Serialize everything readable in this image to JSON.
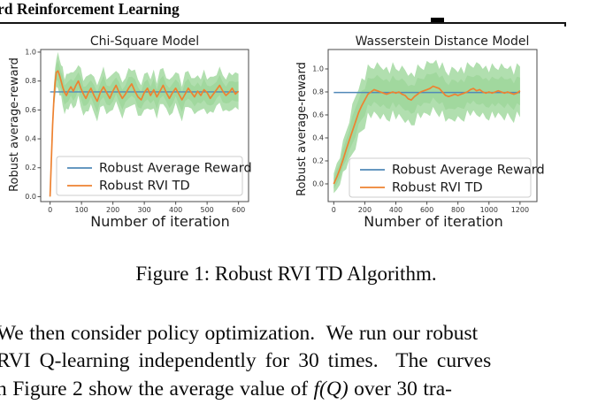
{
  "header": {
    "title": "rd Reinforcement Learning"
  },
  "figure": {
    "caption": "Figure 1: Robust RVI TD Algorithm."
  },
  "body": {
    "line1": "We then consider policy optimization.  We run our robust",
    "line2": "RVI Q-learning independently for 30 times.  The curves",
    "line3_pre": "n Figure 2 show the average value of ",
    "line3_math": "f(Q)",
    "line3_post": " over 30 tra-"
  },
  "chart_data": [
    {
      "type": "line",
      "title": "Chi-Square Model",
      "xlabel": "Number of iteration",
      "ylabel": "Robust average-reward",
      "xlim": [
        -30,
        632
      ],
      "ylim": [
        -0.034,
        1.018
      ],
      "xticks": [
        0,
        100,
        200,
        300,
        400,
        500,
        600
      ],
      "yticks": [
        0.0,
        0.2,
        0.4,
        0.6,
        0.8,
        1.0
      ],
      "grid": false,
      "legend": {
        "position": "lower center",
        "entries": [
          "Robust Average Reward",
          "Robust RVI TD"
        ]
      },
      "colors": {
        "baseline": "#5089b8",
        "curve": "#ee8230",
        "band": "#a9dba6",
        "band_inner": "#93d190"
      },
      "baseline": {
        "name": "Robust Average Reward",
        "value": 0.725,
        "x_range": [
          0,
          600
        ]
      },
      "curve": {
        "name": "Robust RVI TD",
        "x": [
          0,
          4,
          8,
          12,
          16,
          20,
          25,
          30,
          35,
          40,
          46,
          52,
          58,
          66,
          74,
          82,
          90,
          98,
          106,
          114,
          122,
          130,
          140,
          150,
          160,
          170,
          180,
          190,
          200,
          210,
          220,
          230,
          240,
          250,
          260,
          270,
          280,
          290,
          300,
          310,
          320,
          330,
          340,
          350,
          360,
          370,
          380,
          390,
          400,
          410,
          420,
          430,
          440,
          450,
          460,
          470,
          480,
          490,
          500,
          510,
          520,
          530,
          540,
          550,
          560,
          570,
          580,
          590,
          600
        ],
        "y": [
          0.0,
          0.26,
          0.5,
          0.67,
          0.79,
          0.86,
          0.87,
          0.84,
          0.8,
          0.76,
          0.72,
          0.7,
          0.73,
          0.76,
          0.73,
          0.77,
          0.8,
          0.75,
          0.71,
          0.68,
          0.72,
          0.75,
          0.7,
          0.66,
          0.72,
          0.76,
          0.72,
          0.68,
          0.73,
          0.77,
          0.72,
          0.68,
          0.71,
          0.75,
          0.78,
          0.73,
          0.69,
          0.67,
          0.72,
          0.75,
          0.7,
          0.74,
          0.69,
          0.73,
          0.77,
          0.72,
          0.68,
          0.72,
          0.75,
          0.71,
          0.67,
          0.71,
          0.75,
          0.72,
          0.69,
          0.73,
          0.7,
          0.74,
          0.72,
          0.68,
          0.71,
          0.74,
          0.77,
          0.73,
          0.7,
          0.72,
          0.75,
          0.71,
          0.73
        ]
      },
      "band": {
        "upper_offsets": [
          0.11,
          0.14,
          0.09,
          0.15,
          0.12,
          0.1,
          0.13,
          0.11
        ],
        "lower_offsets": [
          0.1,
          0.13,
          0.15,
          0.09,
          0.13,
          0.11,
          0.12,
          0.14
        ],
        "start_ramp": [
          0.2,
          0.35,
          0.5,
          0.65,
          0.8,
          0.9,
          1,
          1
        ]
      }
    },
    {
      "type": "line",
      "title": "Wasserstein Distance Model",
      "xlabel": "Number of iteration",
      "ylabel": "Robust average-reward",
      "xlim": [
        -36,
        1309
      ],
      "ylim": [
        -0.154,
        1.169
      ],
      "xticks": [
        0,
        200,
        400,
        600,
        800,
        1000,
        1200
      ],
      "yticks": [
        0.0,
        0.2,
        0.4,
        0.6,
        0.8,
        1.0
      ],
      "grid": false,
      "legend": {
        "position": "lower center",
        "entries": [
          "Robust Average Reward",
          "Robust RVI TD"
        ]
      },
      "colors": {
        "baseline": "#5089b8",
        "curve": "#ee8230",
        "band": "#a9dba6",
        "band_inner": "#93d190"
      },
      "baseline": {
        "name": "Robust Average Reward",
        "value": 0.795,
        "x_range": [
          0,
          1200
        ]
      },
      "curve": {
        "name": "Robust RVI TD",
        "x": [
          0,
          20,
          40,
          60,
          80,
          100,
          120,
          140,
          160,
          180,
          200,
          220,
          240,
          260,
          280,
          300,
          320,
          340,
          360,
          380,
          400,
          420,
          440,
          460,
          480,
          500,
          520,
          540,
          560,
          580,
          600,
          620,
          640,
          660,
          680,
          700,
          720,
          740,
          760,
          780,
          800,
          820,
          840,
          860,
          880,
          900,
          920,
          940,
          960,
          980,
          1000,
          1020,
          1040,
          1060,
          1080,
          1100,
          1120,
          1140,
          1160,
          1180,
          1200
        ],
        "y": [
          0.0,
          0.06,
          0.13,
          0.21,
          0.3,
          0.38,
          0.46,
          0.54,
          0.62,
          0.68,
          0.73,
          0.78,
          0.8,
          0.82,
          0.81,
          0.8,
          0.79,
          0.78,
          0.79,
          0.8,
          0.79,
          0.8,
          0.78,
          0.77,
          0.74,
          0.73,
          0.76,
          0.78,
          0.8,
          0.81,
          0.82,
          0.83,
          0.85,
          0.84,
          0.83,
          0.8,
          0.77,
          0.76,
          0.77,
          0.78,
          0.77,
          0.78,
          0.79,
          0.8,
          0.82,
          0.83,
          0.81,
          0.82,
          0.8,
          0.79,
          0.8,
          0.79,
          0.8,
          0.81,
          0.8,
          0.79,
          0.8,
          0.79,
          0.78,
          0.79,
          0.81
        ]
      },
      "band": {
        "upper_offsets": [
          0.2,
          0.24,
          0.17,
          0.26,
          0.21,
          0.18,
          0.25,
          0.22
        ],
        "lower_offsets": [
          0.18,
          0.22,
          0.25,
          0.16,
          0.23,
          0.19,
          0.21,
          0.24
        ],
        "start_ramp": [
          0.45,
          0.5,
          0.55,
          0.65,
          0.75,
          0.85,
          0.95,
          1
        ]
      }
    }
  ]
}
